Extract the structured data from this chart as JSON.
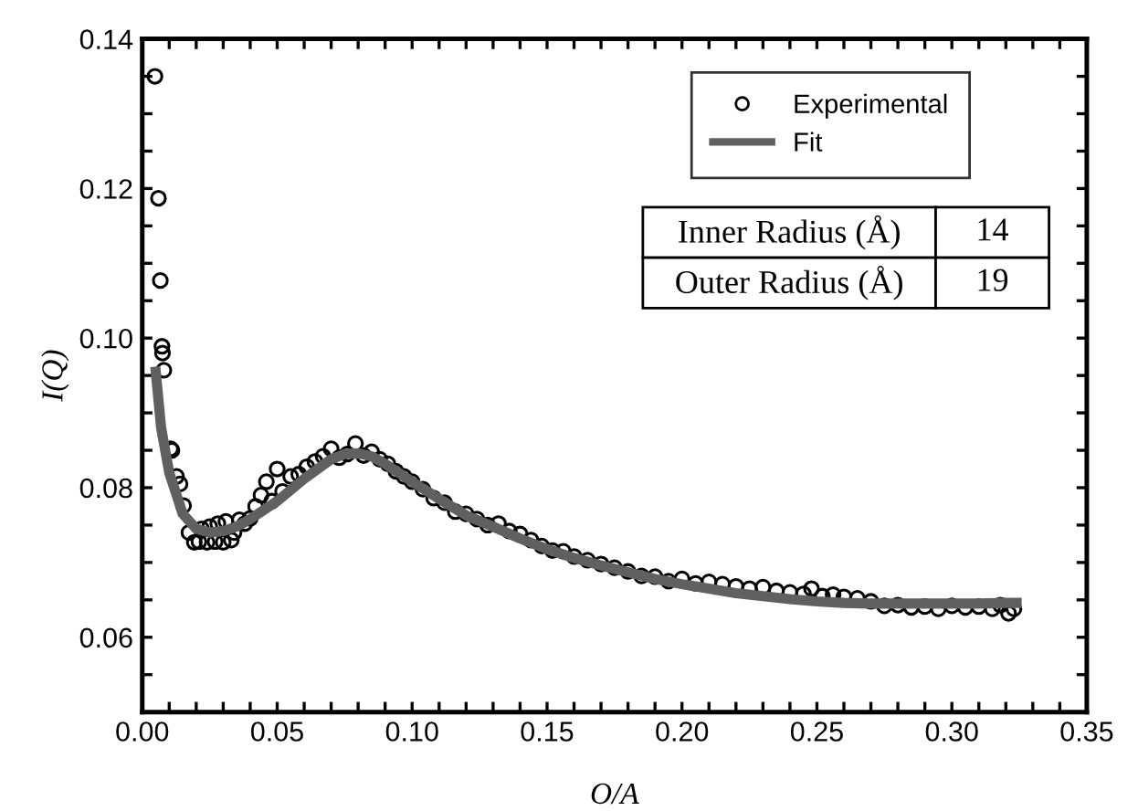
{
  "chart_data": {
    "type": "scatter",
    "xlabel": "O/A",
    "ylabel": "I(Q)",
    "xlim": [
      0,
      0.35
    ],
    "ylim": [
      0.05,
      0.14
    ],
    "xticks": [
      {
        "value": 0.0,
        "label": "0.00"
      },
      {
        "value": 0.01,
        "label": null
      },
      {
        "value": 0.02,
        "label": null
      },
      {
        "value": 0.03,
        "label": null
      },
      {
        "value": 0.04,
        "label": null
      },
      {
        "value": 0.05,
        "label": "0.05"
      },
      {
        "value": 0.06,
        "label": null
      },
      {
        "value": 0.07,
        "label": null
      },
      {
        "value": 0.08,
        "label": null
      },
      {
        "value": 0.09,
        "label": null
      },
      {
        "value": 0.1,
        "label": "0.10"
      },
      {
        "value": 0.11,
        "label": null
      },
      {
        "value": 0.12,
        "label": null
      },
      {
        "value": 0.13,
        "label": null
      },
      {
        "value": 0.14,
        "label": null
      },
      {
        "value": 0.15,
        "label": "0.15"
      },
      {
        "value": 0.16,
        "label": null
      },
      {
        "value": 0.17,
        "label": null
      },
      {
        "value": 0.18,
        "label": null
      },
      {
        "value": 0.19,
        "label": null
      },
      {
        "value": 0.2,
        "label": "0.20"
      },
      {
        "value": 0.21,
        "label": null
      },
      {
        "value": 0.22,
        "label": null
      },
      {
        "value": 0.23,
        "label": null
      },
      {
        "value": 0.24,
        "label": null
      },
      {
        "value": 0.25,
        "label": "0.25"
      },
      {
        "value": 0.26,
        "label": null
      },
      {
        "value": 0.27,
        "label": null
      },
      {
        "value": 0.28,
        "label": null
      },
      {
        "value": 0.29,
        "label": null
      },
      {
        "value": 0.3,
        "label": "0.30"
      },
      {
        "value": 0.31,
        "label": null
      },
      {
        "value": 0.32,
        "label": null
      },
      {
        "value": 0.33,
        "label": null
      },
      {
        "value": 0.34,
        "label": null
      },
      {
        "value": 0.35,
        "label": "0.35"
      }
    ],
    "yticks": [
      {
        "value": 0.05,
        "label": null
      },
      {
        "value": 0.055,
        "label": null
      },
      {
        "value": 0.06,
        "label": "0.06"
      },
      {
        "value": 0.065,
        "label": null
      },
      {
        "value": 0.07,
        "label": null
      },
      {
        "value": 0.075,
        "label": null
      },
      {
        "value": 0.08,
        "label": "0.08"
      },
      {
        "value": 0.085,
        "label": null
      },
      {
        "value": 0.09,
        "label": null
      },
      {
        "value": 0.095,
        "label": null
      },
      {
        "value": 0.1,
        "label": "0.10"
      },
      {
        "value": 0.105,
        "label": null
      },
      {
        "value": 0.11,
        "label": null
      },
      {
        "value": 0.115,
        "label": null
      },
      {
        "value": 0.12,
        "label": "0.12"
      },
      {
        "value": 0.125,
        "label": null
      },
      {
        "value": 0.13,
        "label": null
      },
      {
        "value": 0.135,
        "label": null
      },
      {
        "value": 0.14,
        "label": "0.14"
      }
    ],
    "grid": false,
    "legend": "top right",
    "annotations": [
      "Inner Radius (Å)",
      "14",
      "Outer Radius (Å)",
      "19"
    ],
    "series": [
      {
        "name": "Experimental",
        "marker": "circle",
        "color": "#000000",
        "x": [
          0.0047,
          0.006,
          0.0067,
          0.0073,
          0.0075,
          0.008,
          0.0105,
          0.011,
          0.0127,
          0.014,
          0.0153,
          0.0173,
          0.0193,
          0.021,
          0.022,
          0.024,
          0.025,
          0.027,
          0.028,
          0.03,
          0.031,
          0.033,
          0.034,
          0.036,
          0.038,
          0.04,
          0.042,
          0.044,
          0.046,
          0.048,
          0.05,
          0.052,
          0.055,
          0.058,
          0.061,
          0.064,
          0.067,
          0.07,
          0.073,
          0.076,
          0.079,
          0.082,
          0.085,
          0.088,
          0.091,
          0.094,
          0.097,
          0.1,
          0.104,
          0.108,
          0.112,
          0.116,
          0.12,
          0.124,
          0.128,
          0.132,
          0.136,
          0.14,
          0.144,
          0.148,
          0.152,
          0.156,
          0.16,
          0.165,
          0.17,
          0.175,
          0.18,
          0.185,
          0.19,
          0.195,
          0.2,
          0.205,
          0.21,
          0.215,
          0.22,
          0.225,
          0.23,
          0.235,
          0.24,
          0.245,
          0.248,
          0.252,
          0.256,
          0.26,
          0.265,
          0.27,
          0.275,
          0.28,
          0.285,
          0.29,
          0.295,
          0.3,
          0.305,
          0.31,
          0.315,
          0.318,
          0.321,
          0.323
        ],
        "values": [
          0.135,
          0.1187,
          0.1077,
          0.0989,
          0.098,
          0.0957,
          0.0852,
          0.085,
          0.0815,
          0.0805,
          0.0776,
          0.074,
          0.0727,
          0.0728,
          0.0745,
          0.0727,
          0.0748,
          0.0728,
          0.0752,
          0.0727,
          0.0755,
          0.073,
          0.074,
          0.0757,
          0.0752,
          0.0759,
          0.0775,
          0.079,
          0.0808,
          0.0782,
          0.0825,
          0.0795,
          0.0815,
          0.0818,
          0.0828,
          0.0835,
          0.0842,
          0.0852,
          0.084,
          0.0845,
          0.0859,
          0.0843,
          0.0848,
          0.0838,
          0.0832,
          0.0822,
          0.0815,
          0.0808,
          0.0798,
          0.0786,
          0.078,
          0.0768,
          0.0765,
          0.0758,
          0.075,
          0.0752,
          0.0742,
          0.0738,
          0.073,
          0.0722,
          0.0716,
          0.0715,
          0.0708,
          0.0703,
          0.0698,
          0.0693,
          0.0688,
          0.0682,
          0.0681,
          0.0675,
          0.0678,
          0.0672,
          0.0674,
          0.0671,
          0.0668,
          0.0665,
          0.0667,
          0.0662,
          0.066,
          0.0658,
          0.0665,
          0.0655,
          0.0657,
          0.0654,
          0.0652,
          0.0648,
          0.0642,
          0.0643,
          0.064,
          0.0641,
          0.0638,
          0.0642,
          0.064,
          0.0641,
          0.0638,
          0.0643,
          0.0632,
          0.0638
        ]
      },
      {
        "name": "Fit",
        "type": "line",
        "marker": "none",
        "line_style": "solid",
        "color": "#606060",
        "x": [
          0.005,
          0.007,
          0.01,
          0.015,
          0.02,
          0.025,
          0.03,
          0.035,
          0.04,
          0.05,
          0.06,
          0.07,
          0.075,
          0.08,
          0.085,
          0.09,
          0.1,
          0.11,
          0.12,
          0.13,
          0.14,
          0.15,
          0.16,
          0.17,
          0.18,
          0.19,
          0.2,
          0.21,
          0.22,
          0.23,
          0.24,
          0.25,
          0.26,
          0.27,
          0.28,
          0.29,
          0.3,
          0.31,
          0.32,
          0.324
        ],
        "values": [
          0.0955,
          0.088,
          0.082,
          0.0765,
          0.0745,
          0.074,
          0.0742,
          0.0748,
          0.0758,
          0.0782,
          0.0812,
          0.0838,
          0.0845,
          0.0846,
          0.0842,
          0.0832,
          0.0808,
          0.0785,
          0.0763,
          0.0748,
          0.0732,
          0.0718,
          0.0706,
          0.0696,
          0.0687,
          0.0678,
          0.0671,
          0.0665,
          0.0659,
          0.0655,
          0.0651,
          0.0648,
          0.0646,
          0.0645,
          0.0645,
          0.0645,
          0.0645,
          0.0645,
          0.0646,
          0.0646
        ]
      }
    ]
  }
}
